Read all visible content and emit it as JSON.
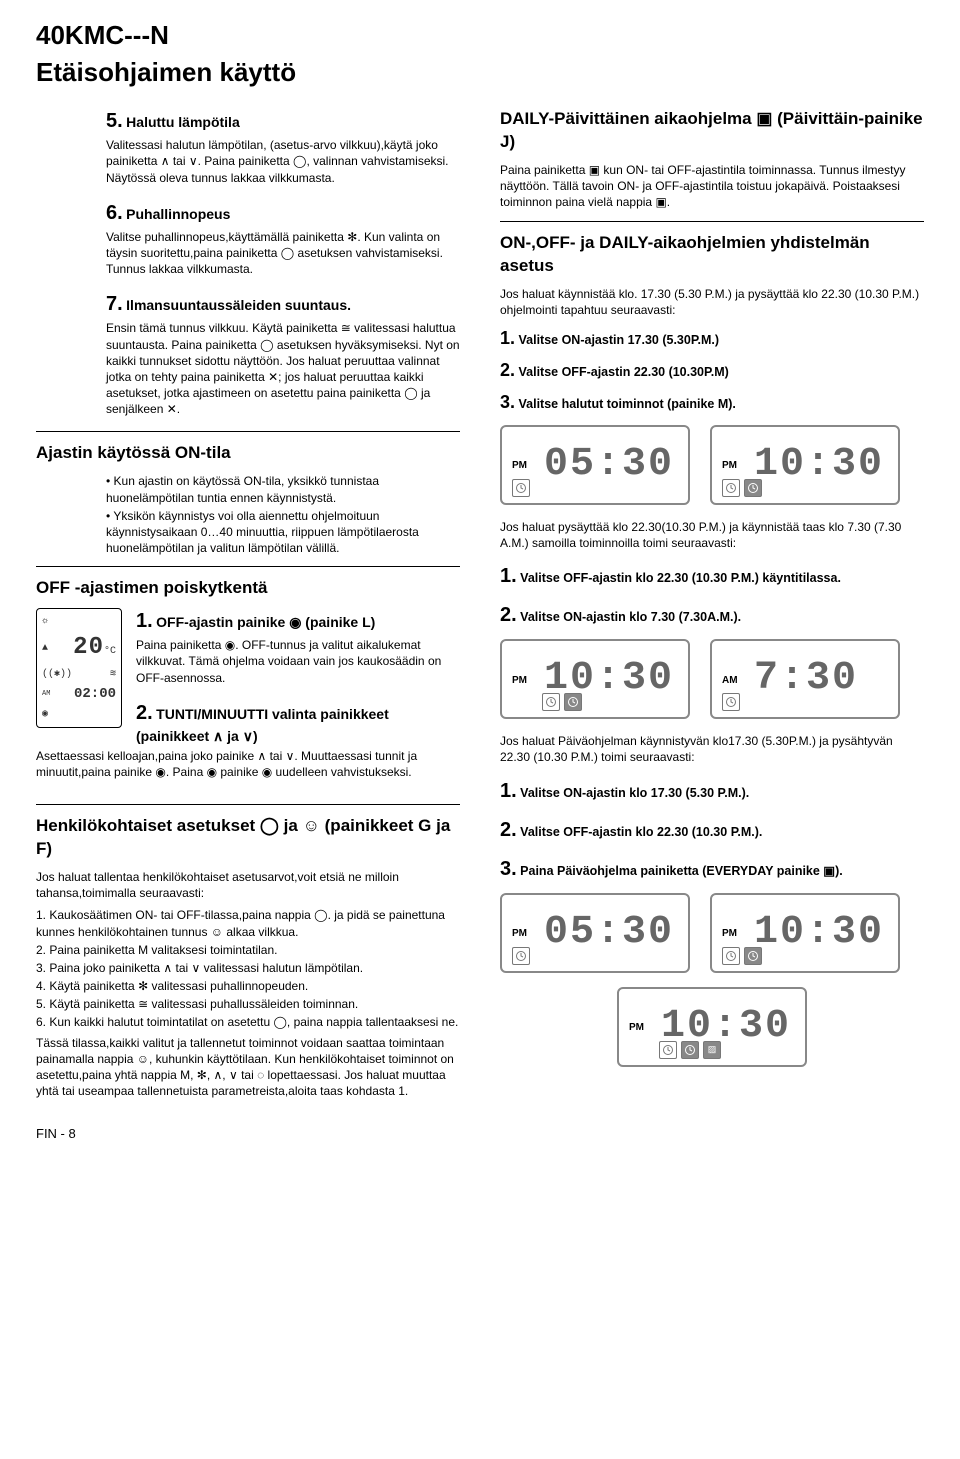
{
  "header": {
    "model": "40KMC---N",
    "title": "Etäisohjaimen käyttö"
  },
  "left": {
    "s5": {
      "num": "5.",
      "label": "Haluttu lämpötila",
      "body": "Valitessasi halutun lämpötilan, (asetus-arvo vilkkuu),käytä joko painiketta ∧ tai ∨. Paina painiketta ◯, valinnan vahvistamiseksi. Näytössä oleva tunnus lakkaa vilkkumasta."
    },
    "s6": {
      "num": "6.",
      "label": "Puhallinnopeus",
      "body": "Valitse puhallinnopeus,käyttämällä painiketta ✻. Kun valinta on täysin suoritettu,paina painiketta ◯ asetuksen vahvistamiseksi. Tunnus lakkaa vilkkumasta."
    },
    "s7": {
      "num": "7.",
      "label": "Ilmansuuntaussäleiden suuntaus.",
      "body": "Ensin tämä tunnus vilkkuu. Käytä painiketta ≅ valitessasi haluttua suuntausta. Paina painiketta ◯ asetuksen hyväksymiseksi. Nyt on kaikki tunnukset sidottu näyttöön. Jos haluat peruuttaa valinnat jotka on tehty paina painiketta ✕; jos haluat peruuttaa kaikki asetukset, jotka ajastimeen on asetettu paina painiketta ◯ ja senjälkeen ✕."
    },
    "timerOn": {
      "heading": "Ajastin käytössä ON-tila",
      "bullets": [
        "• Kun ajastin on käytössä ON-tila, yksikkö tunnistaa huonelämpötilan tuntia ennen käynnistystä.",
        "• Yksikön käynnistys voi olla aiennettu ohjelmoituun käynnistysaikaan 0…40 minuuttia, riippuen lämpötilaerosta huonelämpötilan ja valitun lämpötilan välillä."
      ]
    },
    "offTimer": {
      "heading": "OFF -ajastimen poiskytkentä",
      "s1": {
        "num": "1.",
        "label": "OFF-ajastin painike ◉ (painike L)",
        "body": "Paina painiketta ◉. OFF-tunnus ja valitut aikalukemat vilkkuvat. Tämä ohjelma voidaan vain jos kaukosäädin on OFF-asennossa."
      },
      "s2": {
        "num": "2.",
        "label": "TUNTI/MINUUTTI valinta painikkeet (painikkeet ∧ ja ∨)",
        "body": "Asettaessasi kelloajan,paina joko painike ∧ tai ∨. Muuttaessasi tunnit ja minuutit,paina painike ◉. Paina ◉ painike ◉ uudelleen vahvistukseksi."
      },
      "device": {
        "temp": "20",
        "unit": "°C",
        "time": "02:00",
        "ampm": "AM"
      }
    },
    "personal": {
      "heading": "Henkilökohtaiset asetukset ◯ ja ☺ (painikkeet G ja F)",
      "intro": "Jos haluat tallentaa henkilökohtaiset asetusarvot,voit etsiä ne milloin tahansa,toimimalla seuraavasti:",
      "steps": [
        "1. Kaukosäätimen ON- tai OFF-tilassa,paina nappia ◯. ja pidä se painettuna kunnes henkilökohtainen tunnus ☺ alkaa vilkkua.",
        "2. Paina painiketta M valitaksesi toimintatilan.",
        "3. Paina joko painiketta ∧ tai ∨ valitessasi halutun lämpötilan.",
        "4. Käytä painiketta ✻ valitessasi puhallinnopeuden.",
        "5. Käytä painiketta ≅ valitessasi puhallussäleiden toiminnan.",
        "6. Kun kaikki halutut toimintatilat on asetettu ◯, paina nappia tallentaaksesi ne."
      ],
      "tail": "Tässä tilassa,kaikki valitut ja tallennetut toiminnot voidaan saattaa toimintaan painamalla nappia ☺, kuhunkin käyttötilaan. Kun henkilökohtaiset toiminnot on asetettu,paina yhtä nappia M, ✻, ∧, ∨ tai ◌ lopettaessasi. Jos haluat muuttaa yhtä tai useampaa tallennetuista parametreista,aloita taas kohdasta 1."
    }
  },
  "right": {
    "daily": {
      "heading": "DAILY-Päivittäinen aikaohjelma ▣ (Päivittäin-painike J)",
      "body": "Paina painiketta ▣ kun ON- tai OFF-ajastintila toiminnassa. Tunnus ilmestyy näyttöön. Tällä tavoin ON- ja OFF-ajastintila toistuu jokapäivä. Poistaaksesi toiminnon paina vielä nappia ▣."
    },
    "combined": {
      "heading": "ON-,OFF- ja DAILY-aikaohjelmien yhdistelmän asetus",
      "body": "Jos haluat käynnistää klo. 17.30 (5.30 P.M.) ja pysäyttää klo 22.30 (10.30 P.M.) ohjelmointi tapahtuu seuraavasti:",
      "steps": [
        {
          "n": "1.",
          "t": "Valitse ON-ajastin 17.30 (5.30P.M.)"
        },
        {
          "n": "2.",
          "t": "Valitse OFF-ajastin 22.30 (10.30P.M)"
        },
        {
          "n": "3.",
          "t": "Valitse halutut toiminnot (painike M)."
        }
      ]
    },
    "lcdSet1": [
      {
        "ampm": "PM",
        "digits": "05:30",
        "icons": 1
      },
      {
        "ampm": "PM",
        "digits": "10:30",
        "icons": 2
      }
    ],
    "mid1": "Jos haluat pysäyttää klo 22.30(10.30 P.M.) ja käynnistää taas klo 7.30 (7.30 A.M.) samoilla toiminnoilla toimi seuraavasti:",
    "midSteps1": [
      {
        "n": "1.",
        "t": "Valitse OFF-ajastin klo 22.30 (10.30 P.M.) käyntitilassa."
      },
      {
        "n": "2.",
        "t": "Valitse ON-ajastin klo 7.30 (7.30A.M.)."
      }
    ],
    "lcdSet2": [
      {
        "ampm": "PM",
        "digits": "10:30",
        "icons": 2,
        "indent": true
      },
      {
        "ampm": "AM",
        "digits": "7:30",
        "icons": 1
      }
    ],
    "mid2": "Jos haluat Päiväohjelman käynnistyvän klo17.30 (5.30P.M.) ja pysähtyvän 22.30 (10.30 P.M.) toimi seuraavasti:",
    "midSteps2": [
      {
        "n": "1.",
        "t": "Valitse ON-ajastin klo 17.30 (5.30 P.M.)."
      },
      {
        "n": "2.",
        "t": "Valitse OFF-ajastin klo 22.30 (10.30 P.M.)."
      },
      {
        "n": "3.",
        "t": "Paina Päiväohjelma painiketta (EVERYDAY painike ▣)."
      }
    ],
    "lcdSet3": [
      {
        "ampm": "PM",
        "digits": "05:30",
        "icons": 1
      },
      {
        "ampm": "PM",
        "digits": "10:30",
        "icons": 2
      }
    ],
    "lcdSet4": [
      {
        "ampm": "PM",
        "digits": "10:30",
        "icons": 3,
        "indent": true
      }
    ]
  },
  "footer": "FIN - 8"
}
